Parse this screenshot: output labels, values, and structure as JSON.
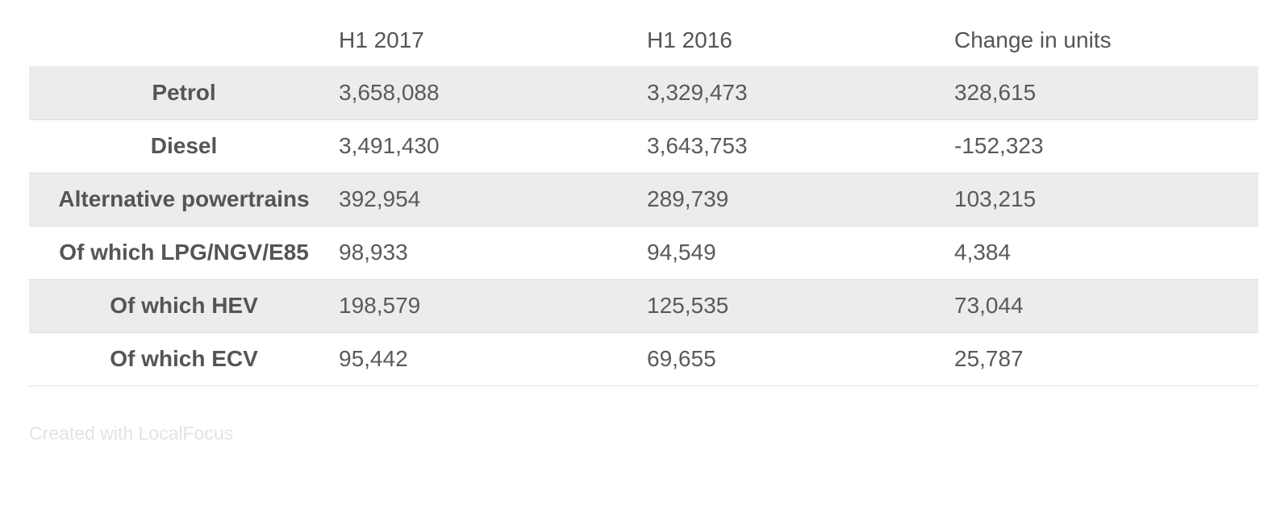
{
  "chart_data": {
    "type": "table",
    "columns": [
      "",
      "H1 2017",
      "H1 2016",
      "Change in units"
    ],
    "rows": [
      {
        "label": "Petrol",
        "values": [
          "3,658,088",
          "3,329,473",
          "328,615"
        ]
      },
      {
        "label": "Diesel",
        "values": [
          "3,491,430",
          "3,643,753",
          "-152,323"
        ]
      },
      {
        "label": "Alternative powertrains",
        "values": [
          "392,954",
          "289,739",
          "103,215"
        ]
      },
      {
        "label": "Of which LPG/NGV/E85",
        "values": [
          "98,933",
          "94,549",
          "4,384"
        ]
      },
      {
        "label": "Of which HEV",
        "values": [
          "198,579",
          "125,535",
          "73,044"
        ]
      },
      {
        "label": "Of which ECV",
        "values": [
          "95,442",
          "69,655",
          "25,787"
        ]
      }
    ]
  },
  "footer": {
    "credit": "Created with LocalFocus"
  },
  "colors": {
    "row_shade": "#ececec",
    "text": "#555555",
    "credit": "#e3e3e3"
  }
}
